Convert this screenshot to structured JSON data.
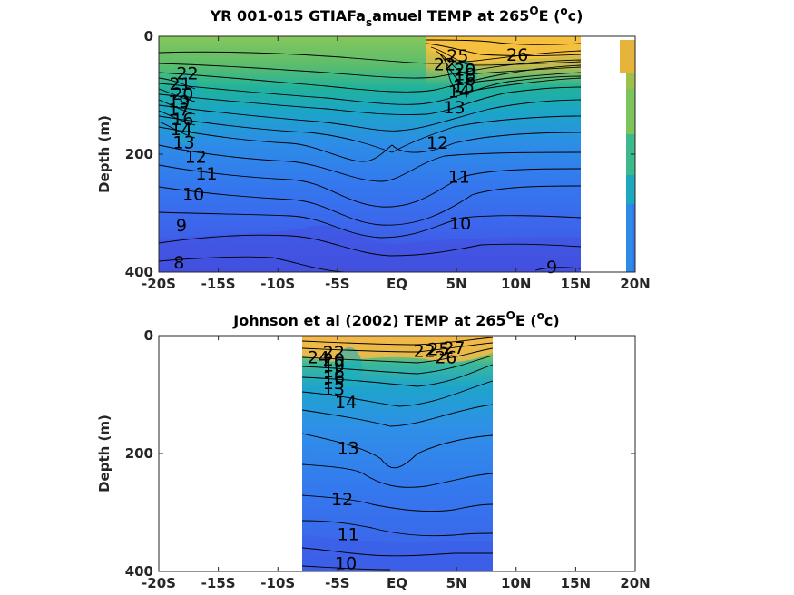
{
  "chart_data": [
    {
      "type": "contour",
      "title_main": "YR 001-015 GTIAFa",
      "title_sub": "s",
      "title_post": "amuel TEMP at 265",
      "title_sup": "O",
      "title_end": "E (",
      "title_unit_sup": "o",
      "title_unit": "c)",
      "ylabel": "Depth (m)",
      "xlim": [
        -20,
        20
      ],
      "ylim": [
        400,
        0
      ],
      "data_xlim": [
        -20,
        15.3
      ],
      "x_ticks": [
        {
          "value": -20,
          "label": "-20S"
        },
        {
          "value": -15,
          "label": "-15S"
        },
        {
          "value": -10,
          "label": "-10S"
        },
        {
          "value": -5,
          "label": "-5S"
        },
        {
          "value": 0,
          "label": "EQ"
        },
        {
          "value": 5,
          "label": "5N"
        },
        {
          "value": 10,
          "label": "10N"
        },
        {
          "value": 15,
          "label": "15N"
        },
        {
          "value": 20,
          "label": "20N"
        }
      ],
      "y_ticks": [
        {
          "value": 0,
          "label": "0"
        },
        {
          "value": 200,
          "label": "200"
        },
        {
          "value": 400,
          "label": "400"
        }
      ],
      "contour_labels": [
        {
          "text": "22",
          "x": -17.6,
          "y": 62
        },
        {
          "text": "21",
          "x": -18.2,
          "y": 80
        },
        {
          "text": "20",
          "x": -18.0,
          "y": 97
        },
        {
          "text": "19",
          "x": -18.3,
          "y": 110
        },
        {
          "text": "17",
          "x": -18.3,
          "y": 124
        },
        {
          "text": "16",
          "x": -18.0,
          "y": 140
        },
        {
          "text": "14",
          "x": -18.1,
          "y": 157
        },
        {
          "text": "13",
          "x": -17.9,
          "y": 179
        },
        {
          "text": "12",
          "x": -16.9,
          "y": 204
        },
        {
          "text": "11",
          "x": -16.0,
          "y": 232
        },
        {
          "text": "10",
          "x": -17.1,
          "y": 267
        },
        {
          "text": "9",
          "x": -18.1,
          "y": 320
        },
        {
          "text": "8",
          "x": -18.3,
          "y": 383
        },
        {
          "text": "25",
          "x": 5.1,
          "y": 32
        },
        {
          "text": "26",
          "x": 10.1,
          "y": 31
        },
        {
          "text": "22",
          "x": 4.0,
          "y": 47
        },
        {
          "text": "20",
          "x": 5.7,
          "y": 56
        },
        {
          "text": "18",
          "x": 5.7,
          "y": 64
        },
        {
          "text": "16",
          "x": 5.7,
          "y": 72
        },
        {
          "text": "15",
          "x": 5.6,
          "y": 84
        },
        {
          "text": "14",
          "x": 5.2,
          "y": 93
        },
        {
          "text": "13",
          "x": 4.8,
          "y": 120
        },
        {
          "text": "12",
          "x": 3.4,
          "y": 180
        },
        {
          "text": "11",
          "x": 5.2,
          "y": 238
        },
        {
          "text": "10",
          "x": 5.3,
          "y": 317
        },
        {
          "text": "9",
          "x": 13.0,
          "y": 391
        }
      ]
    },
    {
      "type": "contour",
      "title_main": "Johnson et al (2002) TEMP at 265",
      "title_sup": "O",
      "title_end": "E (",
      "title_unit_sup": "o",
      "title_unit": "c)",
      "ylabel": "Depth (m)",
      "xlim": [
        -20,
        20
      ],
      "ylim": [
        400,
        0
      ],
      "data_xlim": [
        -8,
        8
      ],
      "x_ticks": [
        {
          "value": -20,
          "label": "-20S"
        },
        {
          "value": -15,
          "label": "-15S"
        },
        {
          "value": -10,
          "label": "-10S"
        },
        {
          "value": -5,
          "label": "-5S"
        },
        {
          "value": 0,
          "label": "EQ"
        },
        {
          "value": 5,
          "label": "5N"
        },
        {
          "value": 10,
          "label": "10N"
        },
        {
          "value": 15,
          "label": "15N"
        },
        {
          "value": 20,
          "label": "20N"
        }
      ],
      "y_ticks": [
        {
          "value": 0,
          "label": "0"
        },
        {
          "value": 200,
          "label": "200"
        },
        {
          "value": 400,
          "label": "400"
        }
      ],
      "contour_labels": [
        {
          "text": "24",
          "x": -6.6,
          "y": 36
        },
        {
          "text": "22",
          "x": -5.3,
          "y": 28
        },
        {
          "text": "20",
          "x": -5.3,
          "y": 40
        },
        {
          "text": "19",
          "x": -5.3,
          "y": 50
        },
        {
          "text": "18",
          "x": -5.3,
          "y": 60
        },
        {
          "text": "16",
          "x": -5.3,
          "y": 70
        },
        {
          "text": "15",
          "x": -5.3,
          "y": 80
        },
        {
          "text": "13",
          "x": -5.3,
          "y": 90
        },
        {
          "text": "14",
          "x": -4.3,
          "y": 112
        },
        {
          "text": "13",
          "x": -4.1,
          "y": 190
        },
        {
          "text": "12",
          "x": -4.6,
          "y": 277
        },
        {
          "text": "11",
          "x": -4.1,
          "y": 336
        },
        {
          "text": "10",
          "x": -4.3,
          "y": 385
        },
        {
          "text": "22",
          "x": 2.3,
          "y": 25
        },
        {
          "text": "25",
          "x": 3.5,
          "y": 22
        },
        {
          "text": "27",
          "x": 4.8,
          "y": 20
        },
        {
          "text": "26",
          "x": 4.1,
          "y": 36
        }
      ]
    }
  ]
}
